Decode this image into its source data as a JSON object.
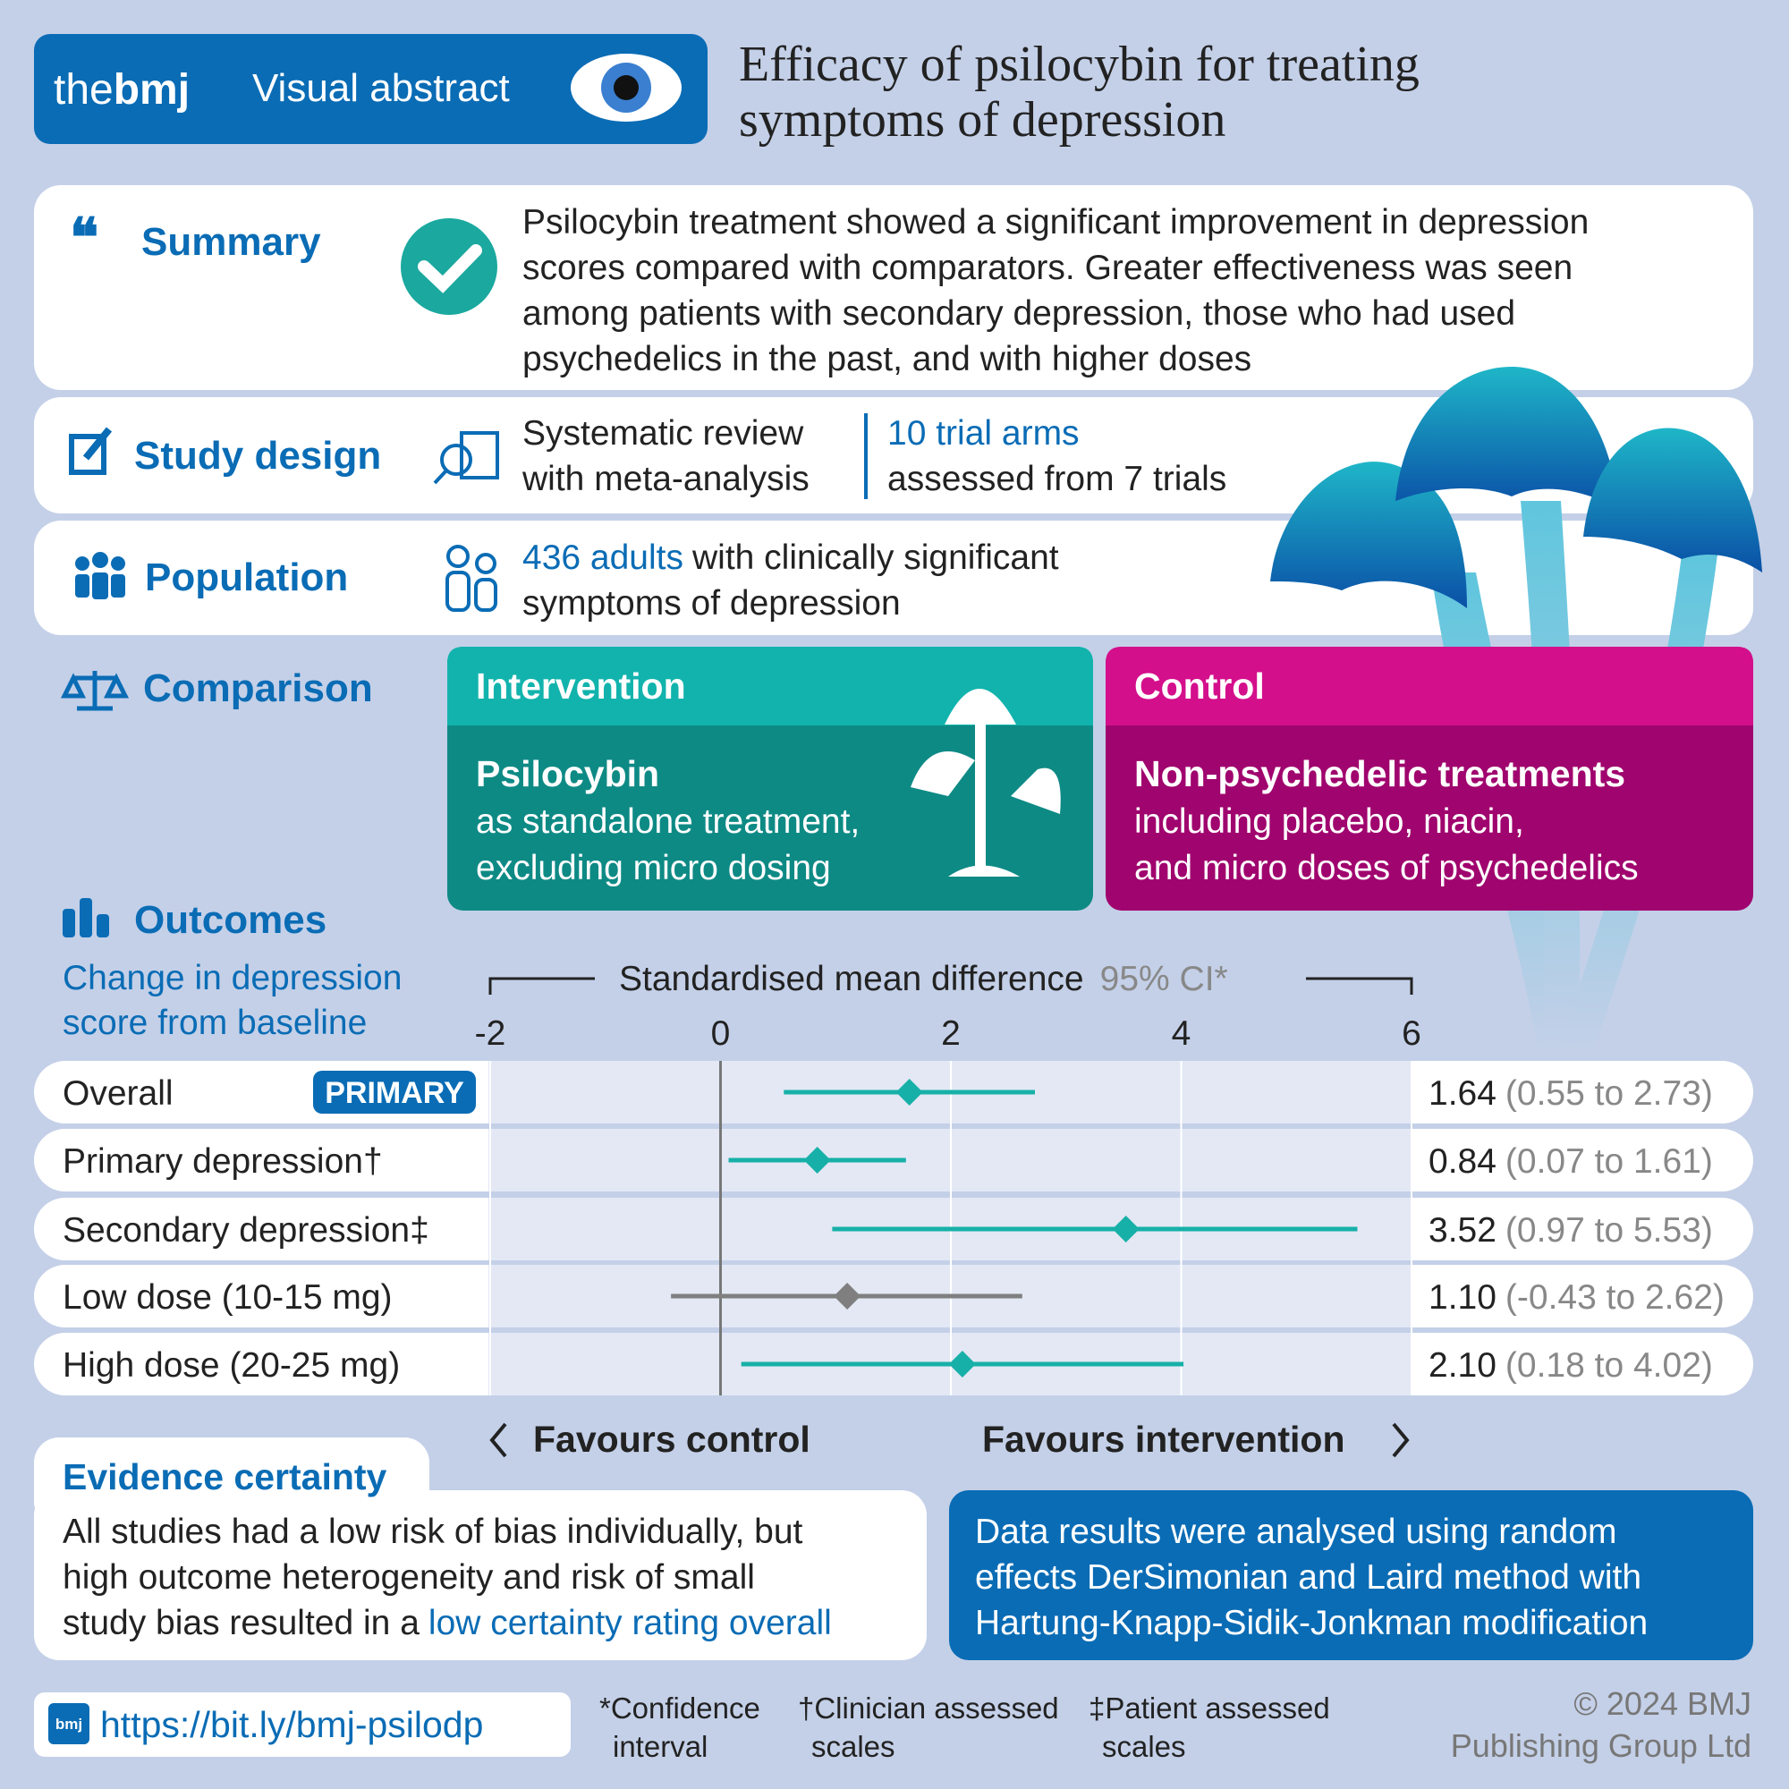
{
  "header": {
    "brand_the": "the",
    "brand_bmj": "bmj",
    "label": "Visual abstract",
    "title": [
      "Efficacy of psilocybin for treating",
      "symptoms of depression"
    ]
  },
  "summary": {
    "heading": "Summary",
    "text": [
      "Psilocybin treatment showed a significant improvement in depression",
      "scores compared with comparators. Greater effectiveness was seen",
      "among patients with secondary depression, those who had used",
      "psychedelics in the past, and with higher doses"
    ]
  },
  "study_design": {
    "heading": "Study design",
    "design": [
      "Systematic review",
      "with meta-analysis"
    ],
    "highlight": "10 trial arms",
    "detail": "assessed from 7 trials"
  },
  "population": {
    "heading": "Population",
    "highlight": "436 adults",
    "text": [
      "with clinically significant",
      "symptoms of depression"
    ]
  },
  "comparison": {
    "heading": "Comparison",
    "intervention": {
      "label": "Intervention",
      "name": "Psilocybin",
      "text": [
        "as standalone treatment,",
        "excluding micro dosing"
      ]
    },
    "control": {
      "label": "Control",
      "name": "Non-psychedelic treatments",
      "text": [
        "including placebo, niacin,",
        "and micro doses of psychedelics"
      ]
    }
  },
  "outcomes": {
    "heading": "Outcomes",
    "subheading": [
      "Change in depression",
      "score from baseline"
    ],
    "primary_tag": "PRIMARY",
    "favours_left": "Favours control",
    "favours_right": "Favours intervention"
  },
  "chart_data": {
    "type": "forest",
    "x_label": "Standardised mean difference",
    "ci_label": "95% CI*",
    "categories": [
      "Overall",
      "Primary depression†",
      "Secondary depression‡",
      "Low dose (10-15 mg)",
      "High dose (20-25 mg)"
    ],
    "values": [
      1.64,
      0.84,
      3.52,
      1.1,
      2.1
    ],
    "value_labels": [
      "1.64",
      "0.84",
      "3.52",
      "1.10",
      "2.10"
    ],
    "lower": [
      0.55,
      0.07,
      0.97,
      -0.43,
      0.18
    ],
    "upper": [
      2.73,
      1.61,
      5.53,
      2.62,
      4.02
    ],
    "ci_labels": [
      "(0.55 to 2.73)",
      "(0.07 to 1.61)",
      "(0.97 to 5.53)",
      "(-0.43 to 2.62)",
      "(0.18 to 4.02)"
    ],
    "colors": [
      "#17b0a8",
      "#17b0a8",
      "#17b0a8",
      "#7f7f7f",
      "#17b0a8"
    ],
    "xlim": [
      -2,
      6
    ],
    "xticks": [
      -2,
      0,
      2,
      4,
      6
    ],
    "grid": true
  },
  "evidence": {
    "heading": "Evidence certainty",
    "text": [
      "All studies had a low risk of bias individually, but",
      "high outcome heterogeneity and risk of small",
      "study bias resulted in a"
    ],
    "highlight": "low certainty rating overall"
  },
  "methods": {
    "text": [
      "Data results were analysed using random",
      "effects DerSimonian and Laird method with",
      "Hartung-Knapp-Sidik-Jonkman modification"
    ]
  },
  "footer": {
    "url_icon": "bmj",
    "url": "https://bit.ly/bmj-psilodp",
    "notes": [
      [
        "*Confidence",
        "interval"
      ],
      [
        "†Clinician assessed",
        "scales"
      ],
      [
        "‡Patient assessed",
        "scales"
      ]
    ],
    "copyright": [
      "© 2024 BMJ",
      "Publishing Group Ltd"
    ]
  }
}
